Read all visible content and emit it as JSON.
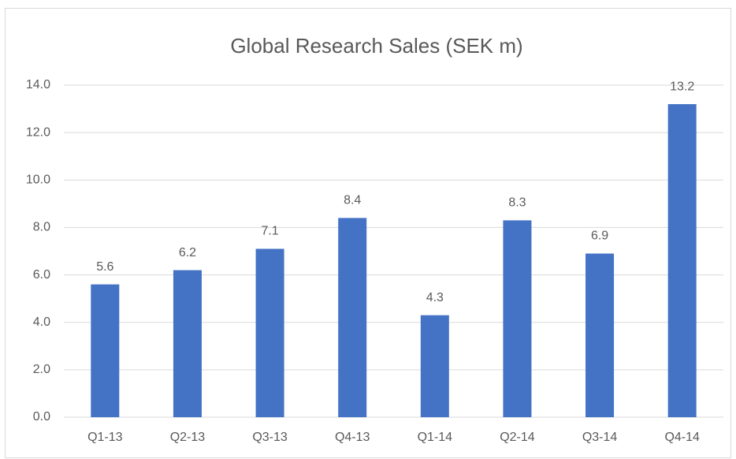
{
  "chart_data": {
    "type": "bar",
    "title": "Global Research Sales (SEK m)",
    "categories": [
      "Q1-13",
      "Q2-13",
      "Q3-13",
      "Q4-13",
      "Q1-14",
      "Q2-14",
      "Q3-14",
      "Q4-14"
    ],
    "values": [
      5.6,
      6.2,
      7.1,
      8.4,
      4.3,
      8.3,
      6.9,
      13.2
    ],
    "color": "#4472c4",
    "ylim": [
      0,
      14
    ],
    "yticks": [
      {
        "value": 0,
        "label": "0.0"
      },
      {
        "value": 2,
        "label": "2.0"
      },
      {
        "value": 4,
        "label": "4.0"
      },
      {
        "value": 6,
        "label": "6.0"
      },
      {
        "value": 8,
        "label": "8.0"
      },
      {
        "value": 10,
        "label": "10.0"
      },
      {
        "value": 12,
        "label": "12.0"
      },
      {
        "value": 14,
        "label": "14.0"
      }
    ],
    "grid": true
  }
}
